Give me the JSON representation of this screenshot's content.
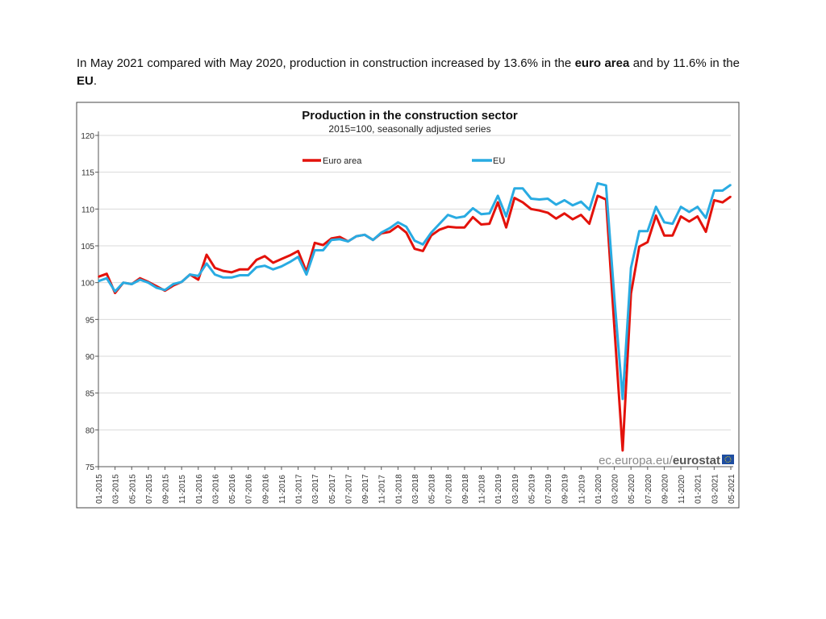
{
  "intro": {
    "part1": "In May 2021 compared with May 2020, production in construction increased by 13.6% in the ",
    "bold1": "euro area",
    "part2": " and by 11.6% in the ",
    "bold2": "EU",
    "part3": "."
  },
  "watermark": {
    "prefix": "ec.europa.eu/",
    "brand": "eurostat"
  },
  "chart_data": {
    "type": "line",
    "title": "Production in the construction sector",
    "subtitle": "2015=100, seasonally adjusted series",
    "xlabel": "",
    "ylabel": "",
    "ylim": [
      75,
      120
    ],
    "yticks": [
      "75",
      "80",
      "85",
      "90",
      "95",
      "100",
      "105",
      "110",
      "115",
      "120"
    ],
    "grid": true,
    "legend_placement": "top-center",
    "start_month": "01-2015",
    "xtick_labels": [
      "01-2015",
      "03-2015",
      "05-2015",
      "07-2015",
      "09-2015",
      "11-2015",
      "01-2016",
      "03-2016",
      "05-2016",
      "07-2016",
      "09-2016",
      "11-2016",
      "01-2017",
      "03-2017",
      "05-2017",
      "07-2017",
      "09-2017",
      "11-2017",
      "01-2018",
      "03-2018",
      "05-2018",
      "07-2018",
      "09-2018",
      "11-2018",
      "01-2019",
      "03-2019",
      "05-2019",
      "07-2019",
      "09-2019",
      "11-2019",
      "01-2020",
      "03-2020",
      "05-2020",
      "07-2020",
      "09-2020",
      "11-2020",
      "01-2021",
      "03-2021",
      "05-2021"
    ],
    "series": [
      {
        "name": "Euro area",
        "color": "#e3120b",
        "values": [
          100.8,
          101.2,
          98.6,
          100.0,
          99.8,
          100.6,
          100.1,
          99.5,
          98.9,
          99.6,
          100.1,
          101.1,
          100.4,
          103.8,
          102.0,
          101.6,
          101.4,
          101.8,
          101.8,
          103.1,
          103.6,
          102.7,
          103.2,
          103.7,
          104.3,
          101.5,
          105.4,
          105.1,
          106.0,
          106.2,
          105.6,
          106.3,
          106.5,
          105.8,
          106.7,
          106.9,
          107.7,
          106.8,
          104.6,
          104.3,
          106.4,
          107.2,
          107.6,
          107.5,
          107.5,
          108.9,
          107.9,
          108.0,
          110.9,
          107.5,
          111.5,
          110.9,
          110.0,
          109.8,
          109.5,
          108.7,
          109.4,
          108.6,
          109.2,
          108.0,
          111.8,
          111.3,
          94.0,
          77.2,
          98.5,
          104.9,
          105.5,
          109.1,
          106.4,
          106.4,
          109.0,
          108.3,
          109.0,
          106.9,
          111.2,
          110.9,
          111.7
        ]
      },
      {
        "name": "EU",
        "color": "#29abe2",
        "values": [
          100.2,
          100.6,
          98.8,
          100.0,
          99.8,
          100.4,
          100.0,
          99.3,
          99.0,
          99.8,
          100.1,
          101.1,
          100.9,
          102.6,
          101.1,
          100.7,
          100.7,
          101.0,
          101.0,
          102.1,
          102.3,
          101.8,
          102.2,
          102.8,
          103.5,
          101.1,
          104.4,
          104.4,
          105.8,
          105.9,
          105.6,
          106.3,
          106.5,
          105.8,
          106.8,
          107.4,
          108.2,
          107.6,
          105.7,
          105.2,
          106.8,
          108.0,
          109.2,
          108.8,
          109.0,
          110.1,
          109.3,
          109.4,
          111.8,
          109.0,
          112.8,
          112.8,
          111.4,
          111.3,
          111.4,
          110.6,
          111.2,
          110.5,
          111.0,
          109.9,
          113.5,
          113.2,
          98.0,
          84.2,
          102.0,
          107.0,
          107.0,
          110.3,
          108.2,
          108.0,
          110.3,
          109.6,
          110.3,
          108.8,
          112.5,
          112.5,
          113.3
        ]
      }
    ]
  }
}
